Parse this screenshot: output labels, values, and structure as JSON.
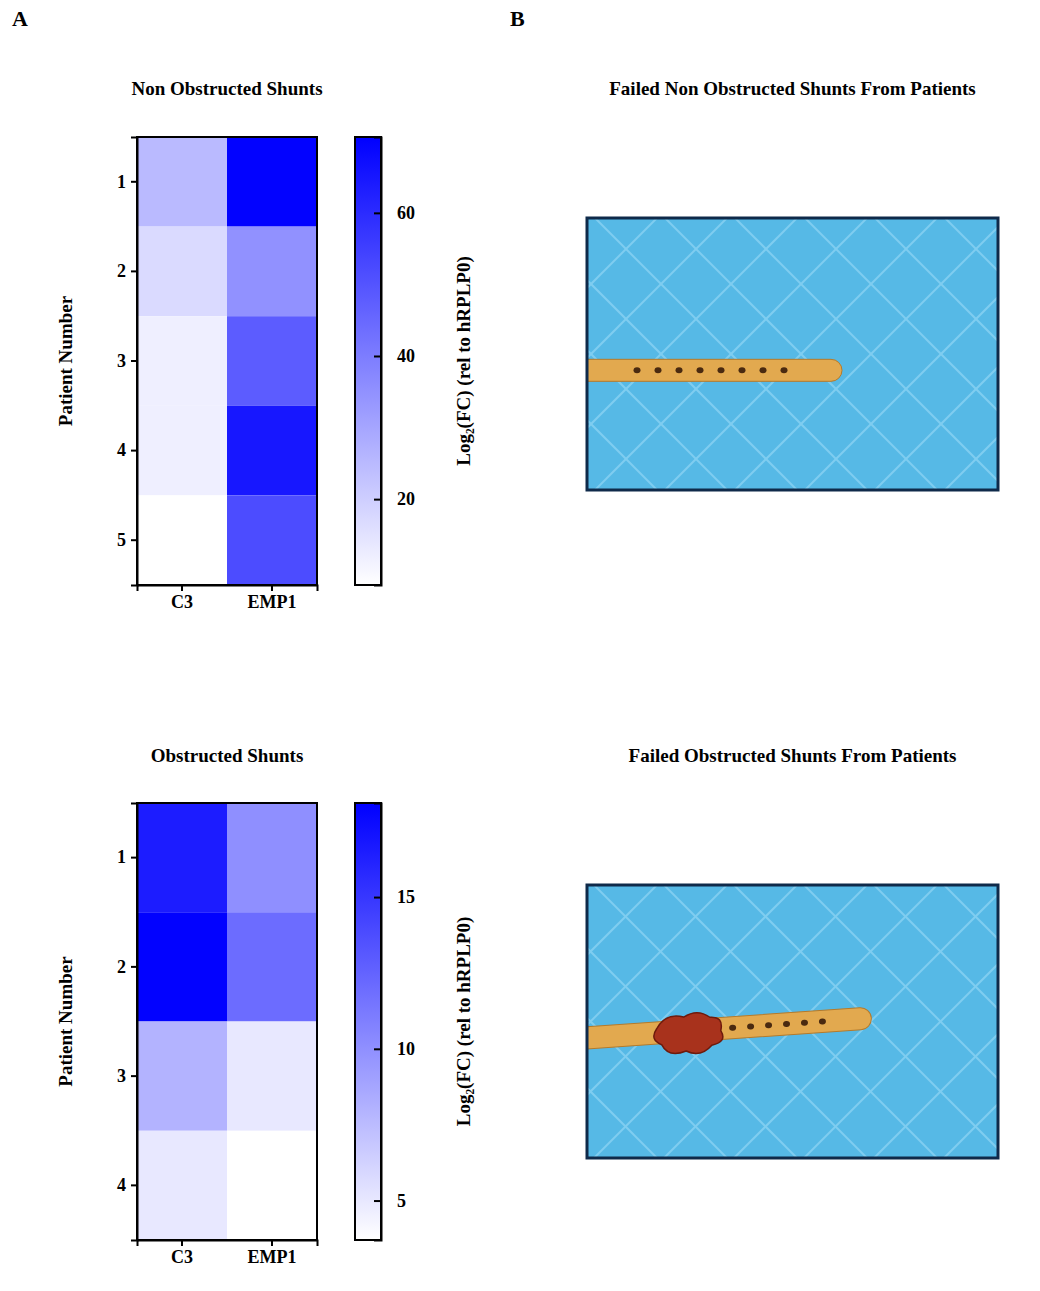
{
  "panel_labels": [
    "A",
    "B"
  ],
  "chart_data": [
    {
      "type": "heatmap",
      "title": "Non Obstructed Shunts",
      "x_categories": [
        "C3",
        "EMP1"
      ],
      "y_categories": [
        "1",
        "2",
        "3",
        "4",
        "5"
      ],
      "y_label": "Patient Number",
      "values": [
        [
          25,
          70
        ],
        [
          17,
          35
        ],
        [
          12,
          48
        ],
        [
          12,
          65
        ],
        [
          8,
          52
        ]
      ],
      "color": "#0000ff",
      "color_range": [
        8,
        70.6
      ],
      "color_ticks": [
        20,
        40,
        60
      ],
      "colorbar_label": "Log₂(FC) (rel to hRPLP0)"
    },
    {
      "type": "heatmap",
      "title": "Obstructed Shunts",
      "x_categories": [
        "C3",
        "EMP1"
      ],
      "y_categories": [
        "1",
        "2",
        "3",
        "4"
      ],
      "y_label": "Patient Number",
      "values": [
        [
          16.5,
          10
        ],
        [
          18,
          12
        ],
        [
          8,
          5
        ],
        [
          5,
          3.7
        ]
      ],
      "color": "#0000ff",
      "color_range": [
        3.7,
        18.1
      ],
      "color_ticks": [
        5,
        10,
        15
      ],
      "colorbar_label": "Log₂(FC) (rel to hRPLP0)"
    }
  ],
  "photos": [
    {
      "title": "Failed Non Obstructed Shunts From Patients"
    },
    {
      "title": "Failed Obstructed Shunts From Patients"
    }
  ]
}
